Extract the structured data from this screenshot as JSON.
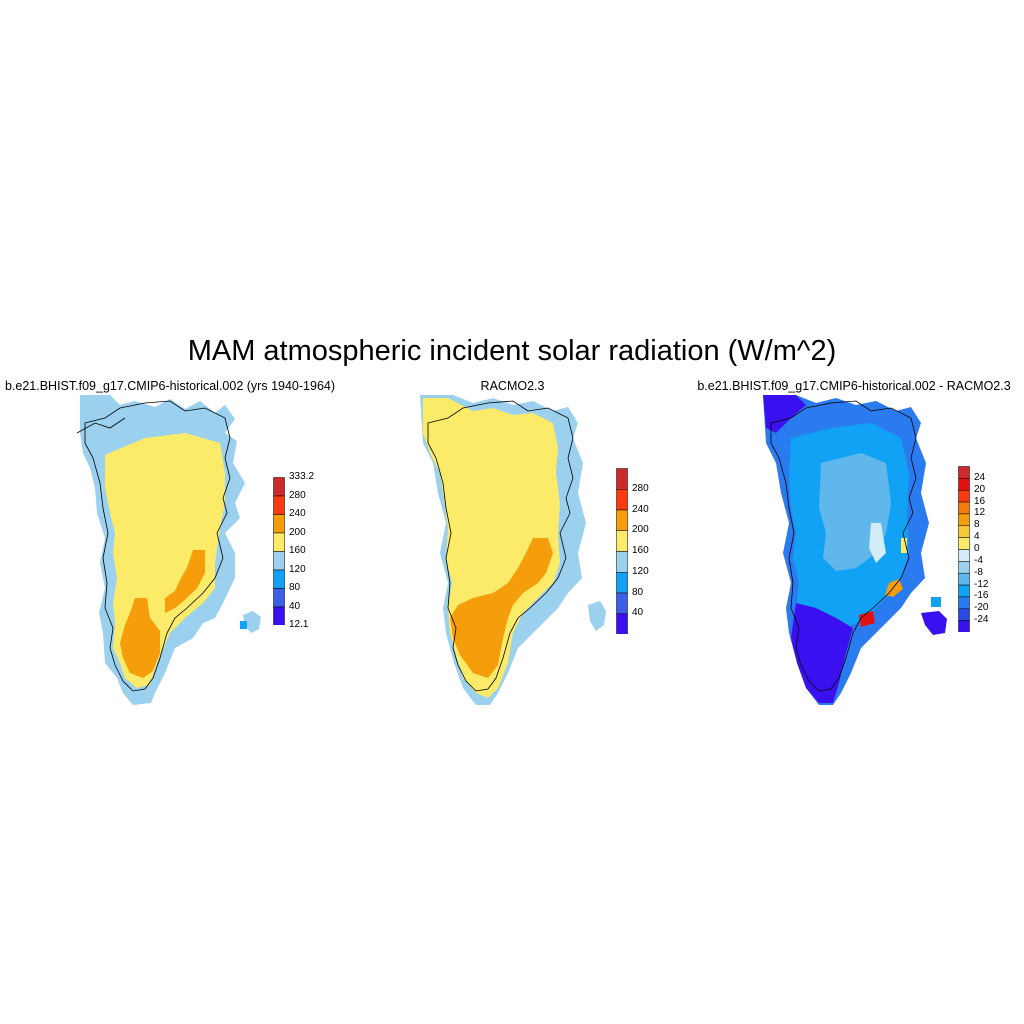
{
  "title": "MAM atmospheric incident solar radiation (W/m^2)",
  "panels": [
    {
      "title": "b.e21.BHIST.f09_g17.CMIP6-historical.002 (yrs 1940-1964)",
      "colorbar": {
        "colors": [
          "#3a10f0",
          "#3d5ee8",
          "#12a2f5",
          "#9bd0ee",
          "#fbeb69",
          "#f59d0a",
          "#fb3a10",
          "#cd2b2b"
        ],
        "labels": [
          "333.2",
          "280",
          "240",
          "200",
          "160",
          "120",
          "80",
          "40",
          "12.1"
        ]
      }
    },
    {
      "title": "RACMO2.3",
      "colorbar": {
        "colors": [
          "#3a10f0",
          "#3d5ee8",
          "#12a2f5",
          "#9bd0ee",
          "#fbeb69",
          "#f59d0a",
          "#fb3a10",
          "#cd2b2b"
        ],
        "labels": [
          "280",
          "240",
          "200",
          "160",
          "120",
          "80",
          "40"
        ]
      }
    },
    {
      "title": "b.e21.BHIST.f09_g17.CMIP6-historical.002 - RACMO2.3",
      "colorbar": {
        "colors": [
          "#3a10f0",
          "#2a49e6",
          "#2a7bf0",
          "#12a2f5",
          "#5fb7ec",
          "#9bd0ee",
          "#d4ecf7",
          "#fbeb69",
          "#f7c83a",
          "#f59d0a",
          "#f27d0c",
          "#fb3a10",
          "#e51010",
          "#cd2b2b"
        ],
        "labels": [
          "24",
          "20",
          "16",
          "12",
          "8",
          "4",
          "0",
          "-4",
          "-8",
          "-12",
          "-16",
          "-20",
          "-24"
        ]
      }
    }
  ]
}
